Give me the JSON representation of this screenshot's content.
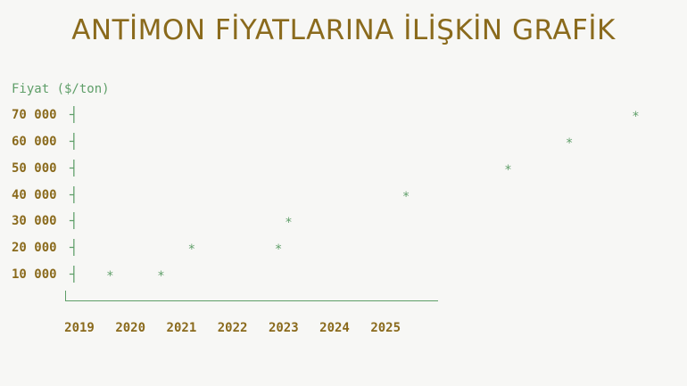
{
  "chart_data": {
    "type": "scatter",
    "title": "ANTİMON FİYATLARINA İLİŞKİN GRAFİK",
    "ylabel": "Fiyat ($/ton)",
    "xlabel": "",
    "y_ticks": [
      "10 000",
      "20 000",
      "30 000",
      "40 000",
      "50 000",
      "60 000",
      "70 000"
    ],
    "y_tick_values": [
      10000,
      20000,
      30000,
      40000,
      50000,
      60000,
      70000
    ],
    "x_ticks": [
      "2019",
      "2020",
      "2021",
      "2022",
      "2023",
      "2024",
      "2025"
    ],
    "x_tick_values": [
      2019,
      2020,
      2021,
      2022,
      2023,
      2024,
      2025
    ],
    "marker": "*",
    "points": [
      {
        "x": 2019.6,
        "y": 10000
      },
      {
        "x": 2020.6,
        "y": 10000
      },
      {
        "x": 2021.2,
        "y": 20000
      },
      {
        "x": 2022.9,
        "y": 20000
      },
      {
        "x": 2023.1,
        "y": 30000
      },
      {
        "x": 2025.4,
        "y": 40000
      },
      {
        "x": 2027.4,
        "y": 50000
      },
      {
        "x": 2028.6,
        "y": 60000
      },
      {
        "x": 2029.9,
        "y": 70000
      }
    ],
    "grid": false,
    "colors": {
      "title": "#8a6a1c",
      "ticks": "#8a6a1c",
      "axis": "#5e9e68",
      "points": "#5e9e68",
      "background": "#f7f7f5"
    }
  }
}
